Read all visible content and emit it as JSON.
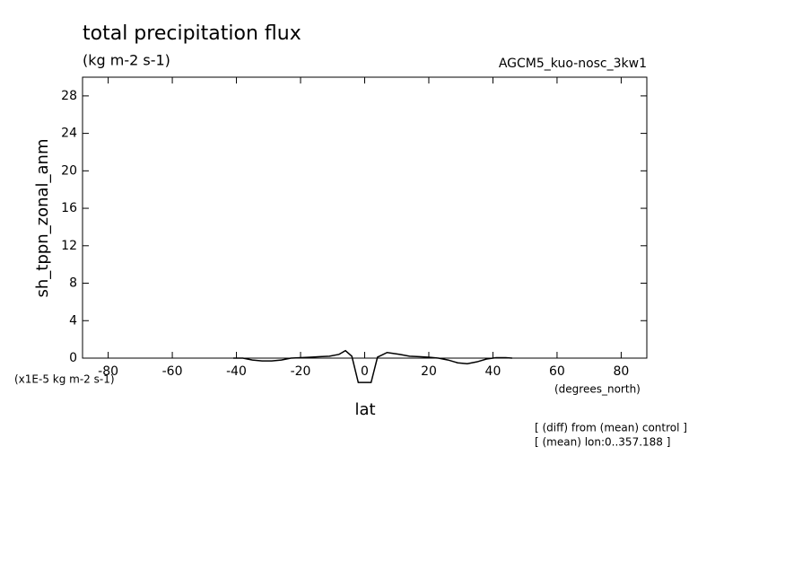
{
  "chart_data": {
    "type": "line",
    "title": "total precipitation flux",
    "subtitle": "(kg m-2 s-1)",
    "dataset": "AGCM5_kuo-nosc_3kw1",
    "y_label": "sh_tppn_zonal_anm",
    "x_label": "lat",
    "y_units": "(x1E-5 kg m-2 s-1)",
    "x_units": "(degrees_north)",
    "notes": [
      "[ (diff) from (mean) control ]",
      "[ (mean) lon:0..357.188 ]"
    ],
    "x": [
      -41,
      -38,
      -35,
      -32,
      -29,
      -26,
      -23,
      -20,
      -17,
      -14,
      -11,
      -8,
      -6,
      -4,
      -2,
      2,
      4,
      7,
      11,
      14,
      17,
      20,
      23,
      26,
      29,
      32,
      35,
      38,
      41,
      44,
      46
    ],
    "series": [
      {
        "name": "sh_tppn_zonal_anm",
        "color": "#000000",
        "values": [
          0,
          0,
          -0.2,
          -0.3,
          -0.3,
          -0.2,
          0,
          0.05,
          0.1,
          0.15,
          0.2,
          0.4,
          0.8,
          0.2,
          -2.6,
          -2.6,
          0.1,
          0.6,
          0.4,
          0.2,
          0.15,
          0.1,
          0,
          -0.2,
          -0.5,
          -0.6,
          -0.4,
          -0.1,
          0.05,
          0.05,
          0
        ]
      }
    ],
    "xlim": [
      -88,
      88
    ],
    "xticks": [
      -80,
      -60,
      -40,
      -20,
      0,
      20,
      40,
      60,
      80
    ],
    "ylim": [
      0,
      30
    ],
    "yticks": [
      0,
      4,
      8,
      12,
      16,
      20,
      24,
      28
    ],
    "grid": false
  }
}
